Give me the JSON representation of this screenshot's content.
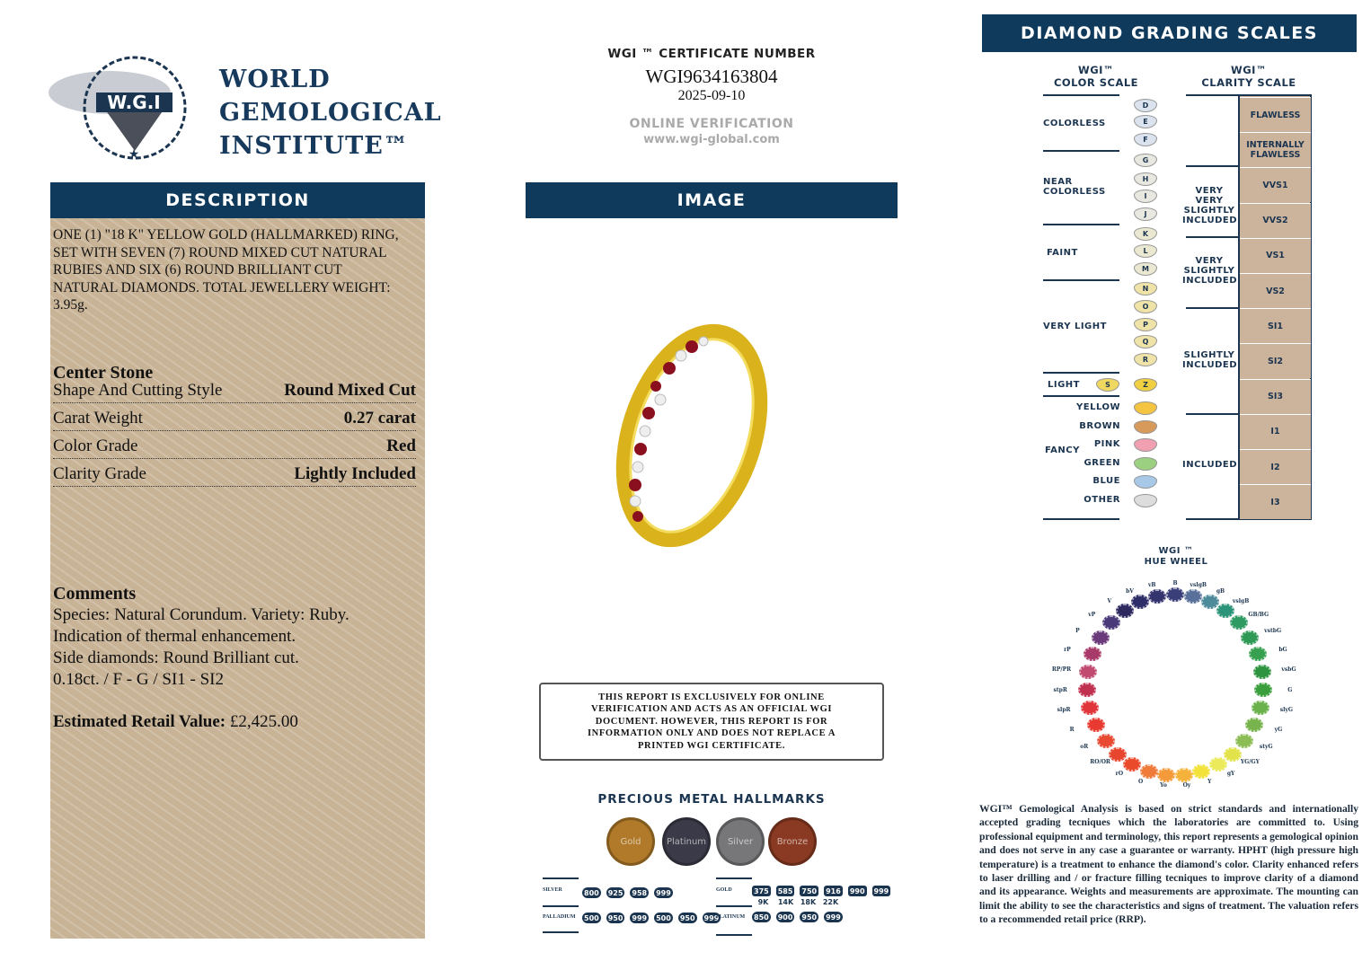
{
  "logo": {
    "seal_text": "WORLD GEMOLOGICAL INSTITUTE W.G.I",
    "lines": [
      "WORLD",
      "GEMOLOGICAL",
      "INSTITUTE™"
    ]
  },
  "description": {
    "header": "DESCRIPTION",
    "text": "ONE (1) \"18 K\" YELLOW GOLD (HALLMARKED) RING, SET WITH SEVEN (7) ROUND MIXED CUT NATURAL RUBIES AND SIX (6) ROUND BRILLIANT CUT NATURAL DIAMONDS. TOTAL JEWELLERY WEIGHT: 3.95g.",
    "center_stone_title": "Center Stone",
    "rows": [
      {
        "label": "Shape And Cutting Style",
        "value": "Round Mixed Cut"
      },
      {
        "label": "Carat Weight",
        "value": "0.27 carat"
      },
      {
        "label": "Color Grade",
        "value": "Red"
      },
      {
        "label": "Clarity Grade",
        "value": "Lightly Included"
      }
    ],
    "comments_title": "Comments",
    "comments": [
      "Species: Natural Corundum. Variety: Ruby.",
      "Indication of thermal enhancement.",
      "Side diamonds: Round Brilliant cut.",
      "0.18ct. / F - G / SI1 - SI2"
    ],
    "retail_label": "Estimated Retail Value:",
    "retail_value": "£2,425.00"
  },
  "certificate": {
    "label": "WGI ™ CERTIFICATE NUMBER",
    "number": "WGI9634163804",
    "date": "2025-09-10",
    "verify_label": "ONLINE VERIFICATION",
    "verify_url": "www.wgi-global.com"
  },
  "image_header": "IMAGE",
  "disclaimer": "THIS REPORT IS EXCLUSIVELY FOR ONLINE VERIFICATION AND ACTS AS AN OFFICIAL WGI DOCUMENT. HOWEVER, THIS REPORT IS FOR INFORMATION ONLY AND DOES NOT REPLACE A PRINTED WGI CERTIFICATE.",
  "hallmarks": {
    "title": "PRECIOUS METAL HALLMARKS",
    "medals": [
      {
        "label": "Gold",
        "color": "#b07a2a"
      },
      {
        "label": "Platinum",
        "color": "#3a3a48"
      },
      {
        "label": "Silver",
        "color": "#77777a"
      },
      {
        "label": "Bronze",
        "color": "#8a3a22"
      }
    ],
    "silver_label": "SILVER",
    "silver": [
      "800",
      "925",
      "958",
      "999"
    ],
    "palladium_label": "PALLADIUM",
    "palladium": [
      "500",
      "950",
      "999",
      "500",
      "950",
      "999"
    ],
    "gold_label": "GOLD",
    "gold": [
      "375",
      "585",
      "750",
      "916",
      "990",
      "999"
    ],
    "gold_karats": [
      "9K",
      "14K",
      "18K",
      "22K"
    ],
    "platinum_label": "PLATINUM",
    "platinum": [
      "850",
      "900",
      "950",
      "999"
    ]
  },
  "scales": {
    "header": "DIAMOND GRADING  SCALES",
    "color_title": [
      "WGI™",
      "COLOR SCALE"
    ],
    "clarity_title": [
      "WGI™",
      "CLARITY SCALE"
    ],
    "color_groups": [
      "COLORLESS",
      "NEAR COLORLESS",
      "FAINT",
      "VERY LIGHT",
      "LIGHT",
      "FANCY"
    ],
    "grades": [
      "D",
      "E",
      "F",
      "G",
      "H",
      "I",
      "J",
      "K",
      "L",
      "M",
      "N",
      "O",
      "P",
      "Q",
      "R"
    ],
    "light_grades": [
      "S",
      "Z"
    ],
    "fancy": [
      "YELLOW",
      "BROWN",
      "PINK",
      "GREEN",
      "BLUE",
      "OTHER"
    ],
    "clarity_groups": [
      "VERY VERY SLIGHTLY INCLUDED",
      "VERY SLIGHTLY INCLUDED",
      "SLIGHTLY INCLUDED",
      "INCLUDED"
    ],
    "clarity": [
      "FLAWLESS",
      "INTERNALLY FLAWLESS",
      "VVS1",
      "VVS2",
      "VS1",
      "VS2",
      "SI1",
      "SI2",
      "SI3",
      "I1",
      "I2",
      "I3"
    ]
  },
  "hue_wheel": {
    "title": [
      "WGI ™",
      "HUE WHEEL"
    ],
    "hues": [
      {
        "l": "B",
        "c": "#3a3f7a"
      },
      {
        "l": "vslgB",
        "c": "#58709a"
      },
      {
        "l": "gB",
        "c": "#4d8a9a"
      },
      {
        "l": "vslgB",
        "c": "#2c9478"
      },
      {
        "l": "GB/BG",
        "c": "#2f9a62"
      },
      {
        "l": "vstbG",
        "c": "#2e9a55"
      },
      {
        "l": "bG",
        "c": "#36a050"
      },
      {
        "l": "vsbG",
        "c": "#2f9440"
      },
      {
        "l": "G",
        "c": "#3a9e3c"
      },
      {
        "l": "slyG",
        "c": "#6cb24c"
      },
      {
        "l": "yG",
        "c": "#78b44e"
      },
      {
        "l": "styG",
        "c": "#8cbd55"
      },
      {
        "l": "YG/GY",
        "c": "#e2e34a"
      },
      {
        "l": "gY",
        "c": "#eaea5a"
      },
      {
        "l": "Y",
        "c": "#f2e23a"
      },
      {
        "l": "Oy",
        "c": "#f5b23a"
      },
      {
        "l": "Yo",
        "c": "#f49a3a"
      },
      {
        "l": "O",
        "c": "#ef7a3a"
      },
      {
        "l": "rO",
        "c": "#ea4a2a"
      },
      {
        "l": "RO/OR",
        "c": "#e8452e"
      },
      {
        "l": "oR",
        "c": "#e84a32"
      },
      {
        "l": "R",
        "c": "#e83a30"
      },
      {
        "l": "slpR",
        "c": "#e0353a"
      },
      {
        "l": "stpR",
        "c": "#c03050"
      },
      {
        "l": "RP/PR",
        "c": "#c04a70"
      },
      {
        "l": "rP",
        "c": "#a83a6a"
      },
      {
        "l": "P",
        "c": "#6a3a7a"
      },
      {
        "l": "vP",
        "c": "#4a3a7a"
      },
      {
        "l": "V",
        "c": "#2e2a60"
      },
      {
        "l": "bV",
        "c": "#2e2e68"
      },
      {
        "l": "vB",
        "c": "#34346e"
      }
    ]
  },
  "footer_text": "WGI™ Gemological Analysis is based on strict standards and internationally accepted grading tecniques which the laboratories are committed to. Using professional equipment and terminology, this report represents a gemological opinion and does not serve in any case a guarantee or warranty. HPHT (high pressure high temperature) is a treatment to enhance the diamond's color. Clarity enhanced refers to laser drilling and / or fracture filling tecniques to improve clarity of a diamond and its appearance. Weights and measurements are approximate. The mounting can limit the ability to see the characteristics and signs of treatment. The valuation refers to a recommended retail price (RRP)."
}
